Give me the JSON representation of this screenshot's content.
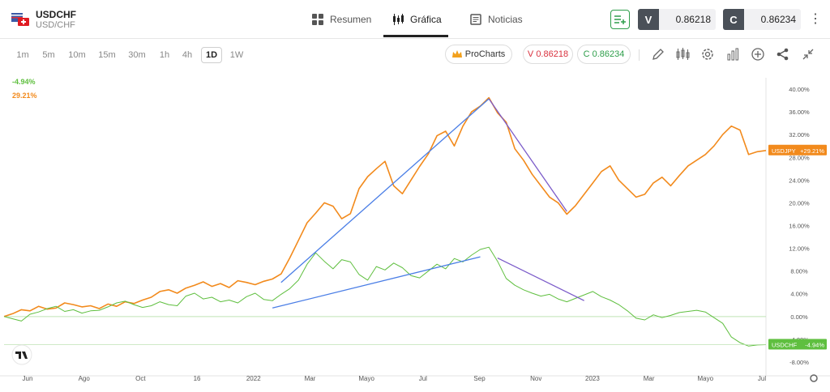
{
  "instrument": {
    "symbol": "USDCHF",
    "pair": "USD/CHF"
  },
  "tabs": [
    {
      "label": "Resumen",
      "icon": "grid-icon"
    },
    {
      "label": "Gráfica",
      "icon": "candles-icon"
    },
    {
      "label": "Noticias",
      "icon": "news-icon"
    }
  ],
  "quotes": {
    "sell_label": "V",
    "sell_value": "0.86218",
    "buy_label": "C",
    "buy_value": "0.86234"
  },
  "timeframes": [
    "1m",
    "5m",
    "10m",
    "15m",
    "30m",
    "1h",
    "4h",
    "1D",
    "1W"
  ],
  "selected_timeframe": "1D",
  "toolbar": {
    "procharts_label": "ProCharts",
    "sell_pill": "V 0.86218",
    "buy_pill": "C 0.86234"
  },
  "legend": {
    "usdchf_change": "-4.94%",
    "usdjpy_change": "29.21%"
  },
  "colors": {
    "usdchf": "#5fbf3f",
    "usdjpy": "#f28a1c",
    "trendline_up": "#4a7ee6",
    "trendline_down": "#7b5bc9",
    "sell": "#d9313e",
    "buy": "#2e9e4a"
  },
  "chart_data": {
    "type": "line",
    "x_ticks": [
      "Jun",
      "Ago",
      "Oct",
      "16",
      "2022",
      "Mar",
      "Mayo",
      "Jul",
      "Sep",
      "Nov",
      "2023",
      "Mar",
      "Mayo",
      "Jul"
    ],
    "y_ticks": [
      "40.00%",
      "36.00%",
      "32.00%",
      "28.00%",
      "24.00%",
      "20.00%",
      "16.00%",
      "12.00%",
      "8.00%",
      "4.00%",
      "0.00%",
      "-4.00%",
      "-8.00%"
    ],
    "ylim": [
      -9,
      42
    ],
    "series": [
      {
        "name": "USDJPY",
        "last_label": "+29.21%",
        "values": [
          0,
          0.5,
          1.2,
          1.0,
          1.8,
          1.3,
          1.5,
          2.4,
          2.1,
          1.7,
          1.9,
          1.4,
          2.2,
          1.8,
          2.6,
          2.3,
          2.9,
          3.4,
          4.4,
          4.7,
          4.1,
          5.0,
          5.5,
          6.1,
          5.3,
          5.8,
          5.1,
          6.3,
          6.0,
          5.6,
          6.2,
          6.6,
          7.5,
          10.3,
          13.4,
          16.5,
          18.2,
          20.0,
          19.4,
          17.2,
          18.1,
          22.5,
          24.6,
          26.0,
          27.3,
          23.0,
          21.6,
          24.0,
          26.4,
          28.6,
          31.8,
          32.6,
          30.0,
          33.5,
          36.0,
          37.0,
          38.5,
          35.8,
          34.2,
          29.5,
          27.5,
          25.0,
          23.0,
          21.0,
          20.0,
          18.0,
          19.5,
          21.5,
          23.5,
          25.5,
          26.5,
          24.0,
          22.5,
          21.0,
          21.5,
          23.5,
          24.5,
          23.0,
          24.8,
          26.5,
          27.5,
          28.5,
          30.0,
          32.0,
          33.5,
          32.8,
          28.5,
          29.0,
          29.21
        ]
      },
      {
        "name": "USDCHF",
        "last_label": "-4.94%",
        "values": [
          0,
          -0.4,
          -0.8,
          0.4,
          0.8,
          1.4,
          1.8,
          0.9,
          1.2,
          0.6,
          1.0,
          1.1,
          1.7,
          2.4,
          2.7,
          2.1,
          1.6,
          1.9,
          2.6,
          2.1,
          1.9,
          3.6,
          4.1,
          3.1,
          3.4,
          2.6,
          2.9,
          2.4,
          3.5,
          4.1,
          3.0,
          2.8,
          3.9,
          4.9,
          6.4,
          9.2,
          11.2,
          9.7,
          8.4,
          10.0,
          9.6,
          7.4,
          6.4,
          8.8,
          8.2,
          9.4,
          8.6,
          7.2,
          6.8,
          8.0,
          9.2,
          8.4,
          10.2,
          9.6,
          10.8,
          11.8,
          12.2,
          9.7,
          6.7,
          5.5,
          4.7,
          4.1,
          3.6,
          3.9,
          3.1,
          2.6,
          3.2,
          3.8,
          4.4,
          3.5,
          2.9,
          2.1,
          1.0,
          -0.3,
          -0.6,
          0.3,
          -0.2,
          0.2,
          0.7,
          0.9,
          1.1,
          0.8,
          -0.2,
          -1.2,
          -3.6,
          -4.6,
          -5.2,
          -5.0,
          -4.94
        ]
      }
    ],
    "trendlines": [
      {
        "series": "USDJPY",
        "from": [
          32,
          6
        ],
        "to": [
          56,
          38.3
        ]
      },
      {
        "series": "USDJPY",
        "from": [
          56,
          38.3
        ],
        "to": [
          65,
          18.5
        ]
      },
      {
        "series": "USDCHF",
        "from": [
          31,
          1.5
        ],
        "to": [
          55,
          10.5
        ]
      },
      {
        "series": "USDCHF",
        "from": [
          57,
          10.3
        ],
        "to": [
          67,
          2.8
        ]
      }
    ]
  }
}
